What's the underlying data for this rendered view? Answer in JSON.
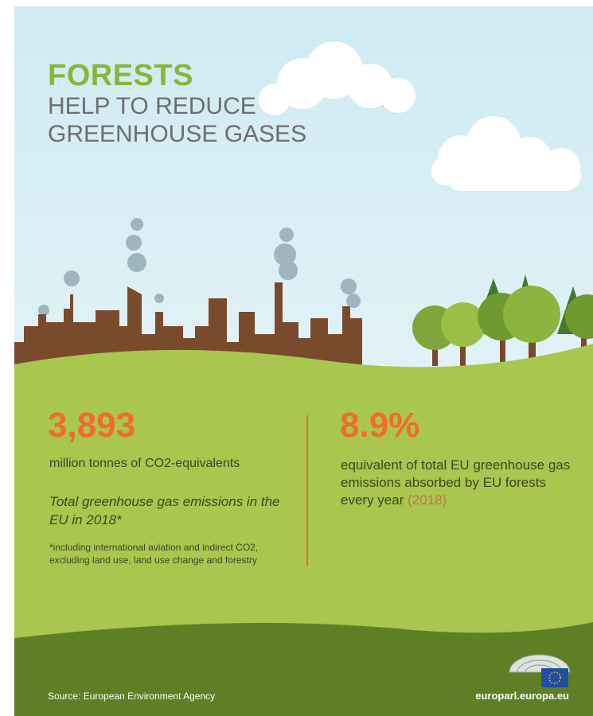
{
  "title": {
    "line1": "FORESTS",
    "line2": "HELP TO REDUCE",
    "line3": "GREENHOUSE GASES"
  },
  "stats": [
    {
      "value": "3,893",
      "unit": "million tonnes of CO2-equivalents",
      "description": "Total greenhouse gas emissions in the EU in 2018*",
      "footnote": "*including international aviation and indirect CO2, excluding land use, land use change and forestry"
    },
    {
      "value": "8.9%",
      "description": "equivalent of total EU greenhouse gas emissions absorbed by EU forests every year",
      "year": "(2018)"
    }
  ],
  "footer": {
    "source": "Source: European Environment Agency",
    "site": "europarl.europa.eu"
  }
}
